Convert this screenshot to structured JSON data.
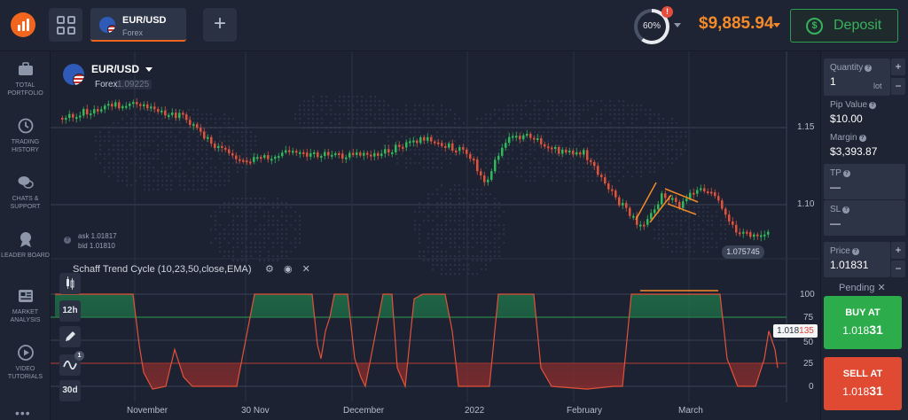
{
  "header": {
    "logo_icon": "logo-icon",
    "tab_grid_icon": "grid-icon",
    "tab": {
      "symbol": "EUR/USD",
      "type": "Forex"
    },
    "add_tab_label": "+",
    "progress": {
      "value": 60,
      "label": "60%",
      "badge": "!"
    },
    "balance": "$9,885.94",
    "deposit_label": "Deposit"
  },
  "sidebar": {
    "items": [
      {
        "label": "TOTAL PORTFOLIO",
        "icon": "briefcase-icon"
      },
      {
        "label": "TRADING HISTORY",
        "icon": "history-icon"
      },
      {
        "label": "CHATS & SUPPORT",
        "icon": "chat-icon"
      },
      {
        "label": "LEADER BOARD",
        "icon": "medal-icon"
      },
      {
        "label": "MARKET ANALYSIS",
        "icon": "news-icon"
      },
      {
        "label": "VIDEO TUTORIALS",
        "icon": "play-icon"
      }
    ],
    "more_label": "•••"
  },
  "chart": {
    "asset": {
      "symbol": "EUR/USD",
      "type": "Forex",
      "ghost_price": "1.09225"
    },
    "ask": "ask 1.01817",
    "bid": "bid 1.01810",
    "current_price": "1.075745",
    "price_ticks": [
      "1.15",
      "1.10"
    ],
    "indicator": {
      "title": "Schaff Trend Cycle (10,23,50,close,EMA)",
      "ticks": [
        "100",
        "75",
        "50",
        "25",
        "0"
      ],
      "current_main": "1.018",
      "current_red": "135"
    },
    "x_labels": [
      "November",
      "30 Nov",
      "December",
      "2022",
      "February",
      "March"
    ],
    "tools": [
      {
        "label": "",
        "icon": "candles-icon"
      },
      {
        "label": "12h",
        "icon": ""
      },
      {
        "label": "",
        "icon": "pencil-icon"
      },
      {
        "label": "",
        "icon": "indicators-icon",
        "badge": "1"
      },
      {
        "label": "30d",
        "icon": ""
      }
    ],
    "colors": {
      "up": "#2dbb5a",
      "down": "#e2523a",
      "oscillator": "#e2523a",
      "annotation": "#f58a2a"
    }
  },
  "panel": {
    "quantity": {
      "label": "Quantity",
      "value": "1",
      "unit": "lot"
    },
    "pip_value": {
      "label": "Pip Value",
      "value": "$10.00"
    },
    "margin": {
      "label": "Margin",
      "value": "$3,393.87"
    },
    "tp": {
      "label": "TP",
      "value": "—"
    },
    "sl": {
      "label": "SL",
      "value": "—"
    },
    "price": {
      "label": "Price",
      "value": "1.01831"
    },
    "pending_label": "Pending",
    "buy": {
      "label": "BUY AT",
      "value_main": "1.018",
      "value_bold": "31"
    },
    "sell": {
      "label": "SELL AT",
      "value_main": "1.018",
      "value_bold": "31"
    }
  }
}
